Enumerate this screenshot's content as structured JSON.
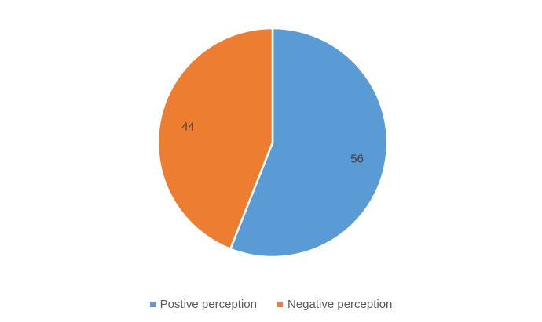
{
  "chart_data": {
    "type": "pie",
    "categories": [
      "Postive perception",
      "Negative perception"
    ],
    "values": [
      56,
      44
    ],
    "colors": [
      "#5B9BD5",
      "#ED7D31"
    ],
    "data_labels": [
      "56",
      "44"
    ],
    "start_angle_deg": 0,
    "direction": "clockwise",
    "legend": {
      "position": "bottom",
      "entries": [
        "Postive perception",
        "Negative perception"
      ]
    },
    "title": ""
  }
}
